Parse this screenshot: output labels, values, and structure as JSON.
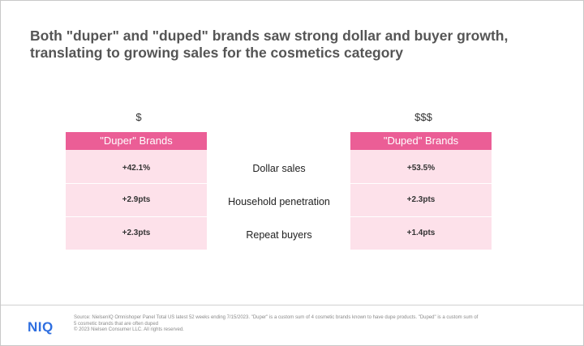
{
  "title": {
    "line1": "Both \"duper\" and \"duped\" brands saw strong dollar and buyer growth,",
    "line2": "translating to growing sales for the cosmetics category"
  },
  "columns": {
    "left": {
      "price": "$",
      "header": "\"Duper\" Brands",
      "values": [
        "+42.1%",
        "+2.9pts",
        "+2.3pts"
      ]
    },
    "right": {
      "price": "$$$",
      "header": "\"Duped\" Brands",
      "values": [
        "+53.5%",
        "+2.3pts",
        "+1.4pts"
      ]
    }
  },
  "metrics": [
    "Dollar sales",
    "Household penetration",
    "Repeat buyers"
  ],
  "footer": {
    "logo": "NIQ",
    "source_line1": "Source: NielsenIQ Omnishoper Panel Total US latest 52 weeks ending 7/15/2023. \"Duper\" is a custom sum of 4 cosmetic brands known to have dupe products. \"Duped\" is a custom sum of",
    "source_line2": "5 cosmetic brands that are often duped",
    "source_line3": "© 2023 Nielsen Consumer LLC. All rights reserved."
  },
  "colors": {
    "accent_pink": "#eb5e96",
    "cell_pink": "#fde1ea",
    "logo_blue": "#2f6fe0"
  }
}
